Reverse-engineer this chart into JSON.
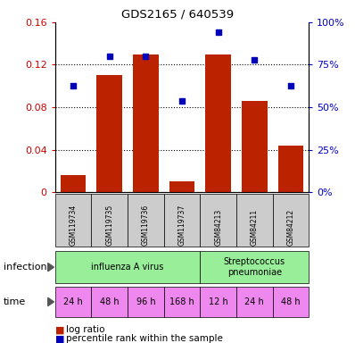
{
  "title": "GDS2165 / 640539",
  "samples": [
    "GSM119734",
    "GSM119735",
    "GSM119736",
    "GSM119737",
    "GSM84213",
    "GSM84211",
    "GSM84212"
  ],
  "log_ratio": [
    0.016,
    0.11,
    0.13,
    0.01,
    0.13,
    0.086,
    0.044
  ],
  "percentile_rank": [
    0.625,
    0.8,
    0.8,
    0.535,
    0.94,
    0.78,
    0.625
  ],
  "bar_color": "#bb2200",
  "dot_color": "#0000bb",
  "ylim_left": [
    0,
    0.16
  ],
  "ylim_right": [
    0,
    1.0
  ],
  "yticks_left": [
    0,
    0.04,
    0.08,
    0.12,
    0.16
  ],
  "yticks_right": [
    0,
    0.25,
    0.5,
    0.75,
    1.0
  ],
  "ytick_labels_left": [
    "0",
    "0.04",
    "0.08",
    "0.12",
    "0.16"
  ],
  "ytick_labels_right": [
    "0%",
    "25%",
    "50%",
    "75%",
    "100%"
  ],
  "infection_groups": [
    {
      "label": "influenza A virus",
      "start": 0,
      "end": 4,
      "color": "#99ee99"
    },
    {
      "label": "Streptococcus\npneumoniae",
      "start": 4,
      "end": 7,
      "color": "#99ee99"
    }
  ],
  "time_labels": [
    "24 h",
    "48 h",
    "96 h",
    "168 h",
    "12 h",
    "24 h",
    "48 h"
  ],
  "sample_bg_color": "#cccccc",
  "infection_row_color": "#99ee99",
  "time_row_color": "#ee88ee",
  "legend_red_label": "log ratio",
  "legend_blue_label": "percentile rank within the sample"
}
